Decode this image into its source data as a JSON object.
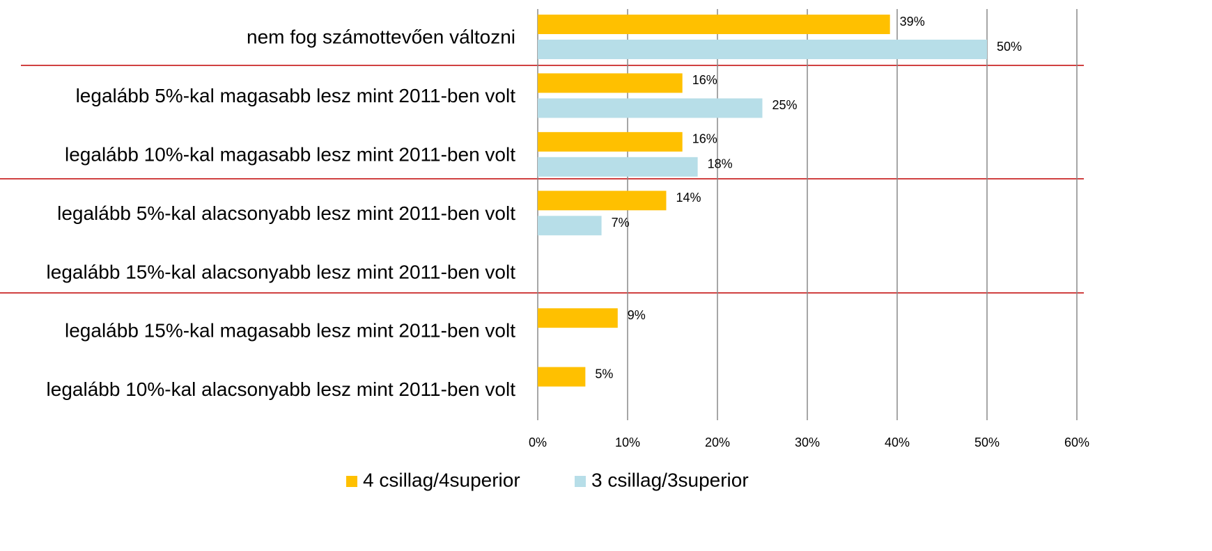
{
  "chart_data": {
    "type": "hbar",
    "categories": [
      "nem fog számottevően változni",
      "legalább 5%-kal magasabb lesz mint 2011-ben volt",
      "legalább 10%-kal magasabb lesz mint 2011-ben volt",
      "legalább 5%-kal alacsonyabb lesz mint 2011-ben volt",
      "legalább 15%-kal alacsonyabb lesz mint 2011-ben volt",
      "legalább 15%-kal magasabb lesz mint 2011-ben volt",
      "legalább 10%-kal alacsonyabb lesz mint 2011-ben volt"
    ],
    "series": [
      {
        "name": "4 csillag/4superior",
        "color": "#ffc000",
        "values": [
          39.2,
          16.1,
          16.1,
          14.3,
          null,
          8.9,
          5.3
        ],
        "value_labels": [
          "39%",
          "16%",
          "16%",
          "14%",
          null,
          "9%",
          "5%"
        ]
      },
      {
        "name": "3 csillag/3superior",
        "color": "#b7dee8",
        "values": [
          50,
          25,
          17.8,
          7.1,
          null,
          null,
          null
        ],
        "value_labels": [
          "50%",
          "25%",
          "18%",
          "7%",
          null,
          null,
          null
        ]
      }
    ],
    "xlim": [
      0,
      60
    ],
    "xticks": [
      {
        "value": 0,
        "label": "0%"
      },
      {
        "value": 10,
        "label": "10%"
      },
      {
        "value": 20,
        "label": "20%"
      },
      {
        "value": 30,
        "label": "30%"
      },
      {
        "value": 40,
        "label": "40%"
      },
      {
        "value": 50,
        "label": "50%"
      },
      {
        "value": 60,
        "label": "60%"
      }
    ],
    "grid": true,
    "legend": "bottom"
  }
}
